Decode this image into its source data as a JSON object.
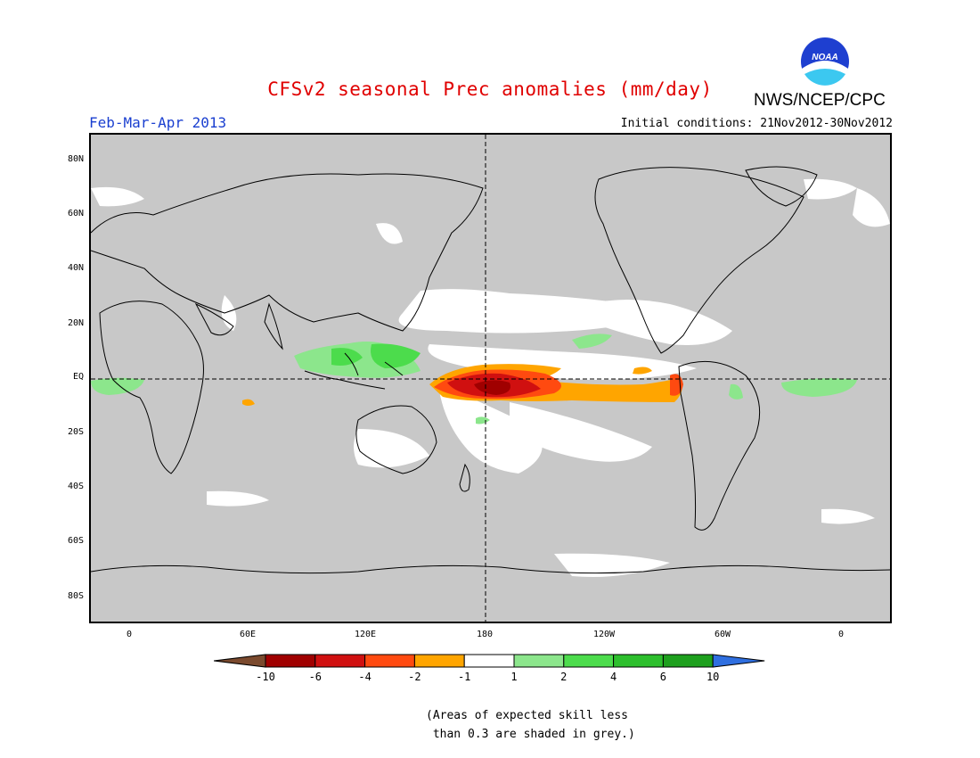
{
  "header": {
    "title": "CFSv2 seasonal Prec anomalies (mm/day)",
    "season": "Feb-Mar-Apr 2013",
    "initial_conditions": "Initial conditions: 21Nov2012-30Nov2012",
    "agency": "NWS/NCEP/CPC",
    "logo_text": "NOAA"
  },
  "map": {
    "projection": "cylindrical equidistant",
    "lon_range": [
      -20,
      380
    ],
    "lat_range": [
      -90,
      90
    ],
    "lat_labels": [
      "80N",
      "60N",
      "40N",
      "20N",
      "EQ",
      "20S",
      "40S",
      "60S",
      "80S"
    ],
    "lon_labels": [
      "0",
      "60E",
      "120E",
      "180",
      "120W",
      "60W",
      "0"
    ],
    "colors": {
      "skill_mask_grey": "#c8c8c8",
      "neutral_white": "#ffffff",
      "coastline": "#000000"
    }
  },
  "legend": {
    "tick_labels": [
      "-10",
      "-6",
      "-4",
      "-2",
      "-1",
      "1",
      "2",
      "4",
      "6",
      "10"
    ],
    "colors": [
      "#7b4a2e",
      "#a00000",
      "#d01010",
      "#ff4a10",
      "#ffa500",
      "#ffffff",
      "#8ce68c",
      "#4cdc4c",
      "#2dbf2d",
      "#1ea01e",
      "#2f6fe0"
    ]
  },
  "footnote": {
    "line1": "(Areas of expected skill less",
    "line2": " than 0.3 are shaded in grey.)"
  }
}
